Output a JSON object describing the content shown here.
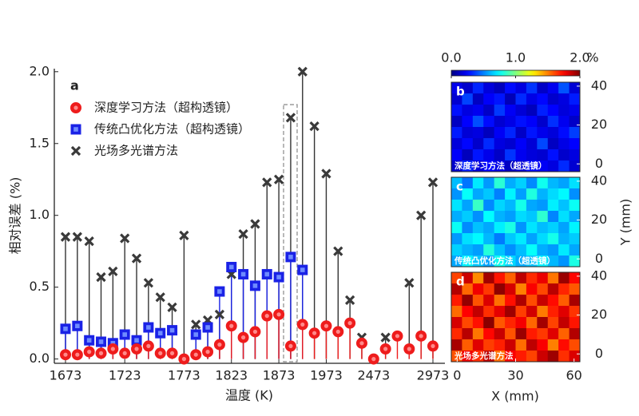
{
  "chart_data": [
    {
      "type": "stem",
      "panel_label": "a",
      "xlabel": "温度 (K)",
      "ylabel": "相对误差 (%)",
      "categories": [
        "1673",
        null,
        null,
        null,
        null,
        "1723",
        null,
        null,
        null,
        null,
        "1773",
        null,
        null,
        null,
        "1823",
        null,
        null,
        null,
        "1873",
        null,
        null,
        null,
        "1973",
        null,
        null,
        null,
        "2473",
        null,
        null,
        null,
        null,
        "2973"
      ],
      "ylim": [
        -0.03,
        2.01
      ],
      "yticks": [
        {
          "value": 0,
          "label": "0.0"
        },
        {
          "value": 0.5,
          "label": "0.5"
        },
        {
          "value": 1,
          "label": "1.0"
        },
        {
          "value": 1.5,
          "label": "1.5"
        },
        {
          "value": 2,
          "label": "2.0"
        }
      ],
      "series": [
        {
          "name": "光场多光谱方法",
          "color": "#3a3a3a",
          "marker": "x",
          "values": [
            0.85,
            0.85,
            0.82,
            0.57,
            0.61,
            0.84,
            0.7,
            0.53,
            0.43,
            0.36,
            0.86,
            0.24,
            0.27,
            0.31,
            0.59,
            0.87,
            0.94,
            1.23,
            1.25,
            1.68,
            2.0,
            1.62,
            1.29,
            0.75,
            0.41,
            0.15,
            null,
            0.15,
            null,
            0.53,
            1.0,
            1.23
          ]
        },
        {
          "name": "传统凸优化方法（超构透镜）",
          "color": "#1a22e6",
          "marker": "square",
          "values": [
            0.21,
            0.23,
            0.13,
            0.12,
            0.11,
            0.17,
            0.13,
            0.22,
            0.18,
            0.2,
            null,
            0.17,
            0.22,
            0.47,
            0.64,
            0.59,
            0.51,
            0.59,
            0.57,
            0.71,
            0.62,
            null,
            null,
            null,
            null,
            null,
            null,
            null,
            null,
            null,
            null,
            null
          ]
        },
        {
          "name": "深度学习方法（超构透镜）",
          "color": "#ee1c1c",
          "marker": "circle",
          "values": [
            0.03,
            0.03,
            0.05,
            0.04,
            0.07,
            0.04,
            0.07,
            0.09,
            0.04,
            0.04,
            0.0,
            0.03,
            0.05,
            0.1,
            0.23,
            0.15,
            0.19,
            0.3,
            0.31,
            0.09,
            0.24,
            0.18,
            0.23,
            0.19,
            0.25,
            0.11,
            0.0,
            0.07,
            0.16,
            0.07,
            0.16,
            0.09
          ]
        }
      ]
    },
    {
      "type": "heatmap",
      "xlabel": "X (mm)",
      "ylabel": "Y (mm)",
      "xlim": [
        -3,
        63
      ],
      "ylim": [
        -4,
        42
      ],
      "xticks": [
        0,
        30,
        60
      ],
      "yticks": [
        0,
        20,
        40
      ],
      "colorbar": {
        "lim": [
          0,
          2
        ],
        "ticks": [
          {
            "value": 0,
            "label": "0.0"
          },
          {
            "value": 1,
            "label": "1.0"
          },
          {
            "value": 2,
            "label": "2.0"
          }
        ],
        "unit": "%"
      },
      "panels": [
        {
          "label": "b",
          "caption": "深度学习方法（超透镜）",
          "values": [
            [
              0.21,
              0.15,
              0.32,
              0.18,
              0.12,
              0.27,
              0.19,
              0.35,
              0.14,
              0.22,
              0.41,
              0.17
            ],
            [
              0.16,
              0.38,
              0.13,
              0.24,
              0.29,
              0.11,
              0.33,
              0.2,
              0.26,
              0.15,
              0.19,
              0.3
            ],
            [
              0.28,
              0.19,
              0.22,
              0.14,
              0.36,
              0.23,
              0.17,
              0.12,
              0.31,
              0.25,
              0.18,
              0.21
            ],
            [
              0.13,
              0.25,
              0.4,
              0.27,
              0.16,
              0.2,
              0.28,
              0.24,
              0.15,
              0.34,
              0.22,
              0.14
            ],
            [
              0.3,
              0.17,
              0.19,
              0.12,
              0.23,
              0.32,
              0.14,
              0.29,
              0.21,
              0.18,
              0.27,
              0.37
            ],
            [
              0.18,
              0.26,
              0.15,
              0.33,
              0.19,
              0.16,
              0.24,
              0.17,
              0.39,
              0.13,
              0.2,
              0.25
            ],
            [
              0.24,
              0.12,
              0.29,
              0.21,
              0.14,
              0.35,
              0.22,
              0.18,
              0.16,
              0.28,
              0.15,
              0.19
            ],
            [
              0.15,
              0.31,
              0.18,
              0.26,
              0.2,
              0.13,
              0.17,
              0.27,
              0.23,
              0.19,
              0.33,
              0.16
            ]
          ]
        },
        {
          "label": "c",
          "caption": "传统凸优化方法（超透镜）",
          "values": [
            [
              0.62,
              0.48,
              0.71,
              0.55,
              0.83,
              0.59,
              0.66,
              0.52,
              0.78,
              0.61,
              0.57,
              0.69
            ],
            [
              0.54,
              0.76,
              0.58,
              0.64,
              0.5,
              0.73,
              0.56,
              0.81,
              0.6,
              0.68,
              0.74,
              0.53
            ],
            [
              0.7,
              0.57,
              0.86,
              0.52,
              0.67,
              0.61,
              0.79,
              0.58,
              0.55,
              0.72,
              0.63,
              0.77
            ],
            [
              0.59,
              0.65,
              0.53,
              0.75,
              0.6,
              0.56,
              0.68,
              0.64,
              0.84,
              0.51,
              0.69,
              0.58
            ],
            [
              0.77,
              0.52,
              0.63,
              0.58,
              0.72,
              0.8,
              0.54,
              0.7,
              0.62,
              0.66,
              0.57,
              0.73
            ],
            [
              0.55,
              0.69,
              0.74,
              0.61,
              0.49,
              0.64,
              0.71,
              0.57,
              0.68,
              0.79,
              0.6,
              0.65
            ],
            [
              0.66,
              0.6,
              0.56,
              0.82,
              0.63,
              0.53,
              0.62,
              0.76,
              0.59,
              0.55,
              0.71,
              0.58
            ],
            [
              0.58,
              0.73,
              0.64,
              0.57,
              0.78,
              0.67,
              0.59,
              0.63,
              0.72,
              0.61,
              0.54,
              0.8
            ]
          ]
        },
        {
          "label": "d",
          "caption": "光场多光谱方法",
          "values": [
            [
              1.62,
              1.85,
              1.48,
              1.93,
              1.71,
              1.56,
              1.88,
              1.67,
              1.79,
              1.52,
              1.95,
              1.74
            ],
            [
              1.9,
              1.55,
              1.78,
              1.64,
              1.97,
              1.83,
              1.5,
              1.76,
              1.61,
              1.89,
              1.68,
              1.58
            ],
            [
              1.7,
              1.96,
              1.59,
              1.82,
              1.53,
              1.72,
              1.91,
              1.6,
              1.86,
              1.73,
              1.57,
              1.92
            ],
            [
              1.54,
              1.75,
              1.87,
              1.66,
              1.8,
              1.94,
              1.63,
              1.84,
              1.51,
              1.69,
              1.81,
              1.65
            ],
            [
              1.83,
              1.61,
              1.72,
              1.98,
              1.58,
              1.68,
              1.77,
              1.55,
              1.93,
              1.62,
              1.87,
              1.71
            ],
            [
              1.67,
              1.89,
              1.52,
              1.74,
              1.86,
              1.59,
              1.95,
              1.7,
              1.64,
              1.81,
              1.56,
              1.9
            ],
            [
              1.92,
              1.57,
              1.81,
              1.63,
              1.69,
              1.85,
              1.54,
              1.88,
              1.76,
              1.5,
              1.73,
              1.6
            ],
            [
              1.59,
              1.78,
              1.66,
              1.88,
              1.53,
              1.76,
              1.7,
              1.62,
              1.85,
              1.94,
              1.66,
              1.82
            ]
          ]
        }
      ]
    }
  ]
}
